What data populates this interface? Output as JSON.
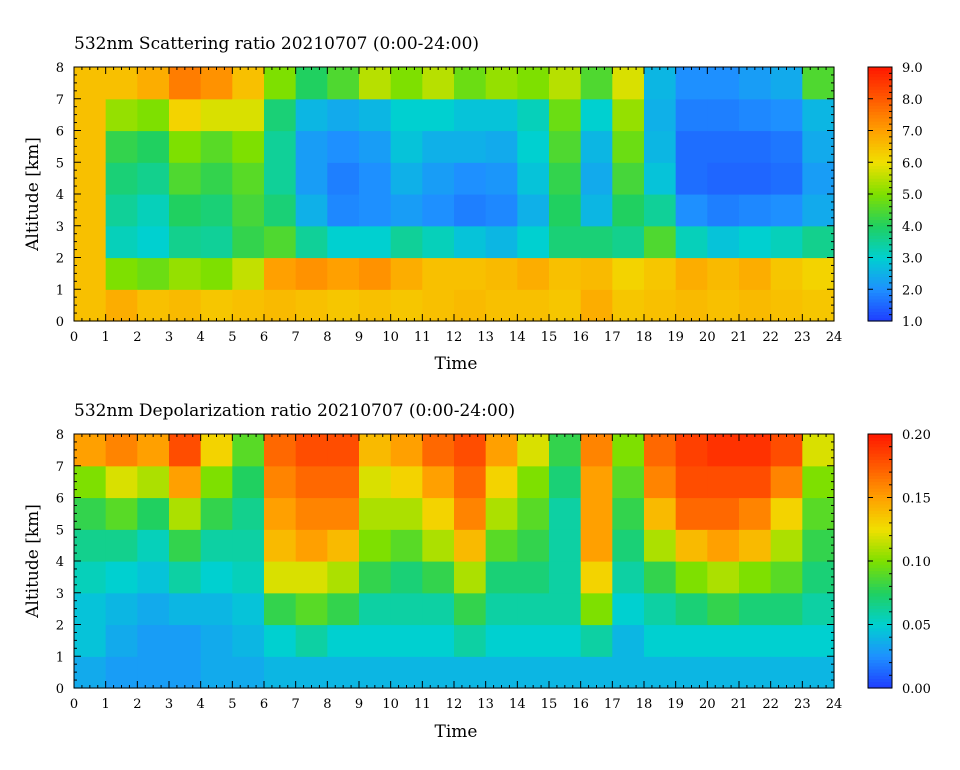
{
  "chart_data": [
    {
      "type": "heatmap",
      "title": "532nm Scattering ratio  20210707 (0:00-24:00)",
      "xlabel": "Time",
      "ylabel": "Altitude [km]",
      "xlim": [
        0,
        24
      ],
      "ylim": [
        0,
        8
      ],
      "xticks": [
        "0",
        "1",
        "2",
        "3",
        "4",
        "5",
        "6",
        "7",
        "8",
        "9",
        "10",
        "11",
        "12",
        "13",
        "14",
        "15",
        "16",
        "17",
        "18",
        "19",
        "20",
        "21",
        "22",
        "23",
        "24"
      ],
      "yticks": [
        "0",
        "1",
        "2",
        "3",
        "4",
        "5",
        "6",
        "7",
        "8"
      ],
      "colorbar": {
        "min": 1.0,
        "max": 9.0,
        "ticks": [
          "1.0",
          "2.0",
          "3.0",
          "4.0",
          "5.0",
          "6.0",
          "7.0",
          "8.0",
          "9.0"
        ],
        "colors": [
          "#1f3cff",
          "#1e90ff",
          "#00d0d0",
          "#20d060",
          "#7ee000",
          "#f0e000",
          "#ffa000",
          "#ff5a00",
          "#ff1800"
        ]
      },
      "x_bins": [
        "0-1",
        "1-2",
        "2-3",
        "3-4",
        "4-5",
        "5-6",
        "6-7",
        "7-8",
        "8-9",
        "9-10",
        "10-11",
        "11-12",
        "12-13",
        "13-14",
        "14-15",
        "15-16",
        "16-17",
        "17-18",
        "18-19",
        "19-20",
        "20-21",
        "21-22",
        "22-23",
        "23-24"
      ],
      "y_bins": [
        "0-1",
        "1-2",
        "2-3",
        "3-4",
        "4-5",
        "5-6",
        "6-7",
        "7-8"
      ],
      "values": [
        [
          6.5,
          6.5,
          6.5,
          6.5,
          6.5,
          6.5,
          6.5,
          6.5
        ],
        [
          6.8,
          5.0,
          3.2,
          3.5,
          3.8,
          4.2,
          5.2,
          6.5
        ],
        [
          6.5,
          4.8,
          3.0,
          3.2,
          3.6,
          4.0,
          5.0,
          6.8
        ],
        [
          6.6,
          5.2,
          3.6,
          4.0,
          4.5,
          5.0,
          6.2,
          7.5
        ],
        [
          6.4,
          5.0,
          3.5,
          3.8,
          4.2,
          4.6,
          5.8,
          7.2
        ],
        [
          6.5,
          5.6,
          4.2,
          4.4,
          4.6,
          5.0,
          5.8,
          6.5
        ],
        [
          6.6,
          7.0,
          4.5,
          3.8,
          3.5,
          3.5,
          3.8,
          5.0
        ],
        [
          6.5,
          7.2,
          3.5,
          2.5,
          2.2,
          2.2,
          2.6,
          4.0
        ],
        [
          6.4,
          7.0,
          3.0,
          1.9,
          1.8,
          2.0,
          2.4,
          4.5
        ],
        [
          6.5,
          7.2,
          3.0,
          2.0,
          2.0,
          2.2,
          2.6,
          5.5
        ],
        [
          6.4,
          6.8,
          3.5,
          2.2,
          2.5,
          2.8,
          3.0,
          5.0
        ],
        [
          6.5,
          6.5,
          3.2,
          2.0,
          2.2,
          2.5,
          3.0,
          5.5
        ],
        [
          6.6,
          6.5,
          2.8,
          1.8,
          2.0,
          2.5,
          2.8,
          4.8
        ],
        [
          6.5,
          6.6,
          2.6,
          1.9,
          2.1,
          2.4,
          2.8,
          5.2
        ],
        [
          6.5,
          6.8,
          3.0,
          2.5,
          2.8,
          3.0,
          3.2,
          5.0
        ],
        [
          6.4,
          6.5,
          3.8,
          4.0,
          4.2,
          4.5,
          4.8,
          5.5
        ],
        [
          6.8,
          6.6,
          3.8,
          2.6,
          2.4,
          2.6,
          3.0,
          4.5
        ],
        [
          6.4,
          6.2,
          3.6,
          4.0,
          4.4,
          4.8,
          5.2,
          5.8
        ],
        [
          6.5,
          6.4,
          4.5,
          3.5,
          2.8,
          2.6,
          2.5,
          2.6
        ],
        [
          6.6,
          6.8,
          3.2,
          2.0,
          1.6,
          1.6,
          1.8,
          2.0
        ],
        [
          6.5,
          6.6,
          2.8,
          1.8,
          1.5,
          1.6,
          1.8,
          2.0
        ],
        [
          6.6,
          6.8,
          3.0,
          1.9,
          1.5,
          1.6,
          1.9,
          2.2
        ],
        [
          6.5,
          6.4,
          3.2,
          2.0,
          1.6,
          1.7,
          2.0,
          2.4
        ],
        [
          6.4,
          6.2,
          3.6,
          2.4,
          2.2,
          2.4,
          2.6,
          4.5
        ]
      ]
    },
    {
      "type": "heatmap",
      "title": "532nm Depolarization ratio  20210707 (0:00-24:00)",
      "xlabel": "Time",
      "ylabel": "Altitude [km]",
      "xlim": [
        0,
        24
      ],
      "ylim": [
        0,
        8
      ],
      "xticks": [
        "0",
        "1",
        "2",
        "3",
        "4",
        "5",
        "6",
        "7",
        "8",
        "9",
        "10",
        "11",
        "12",
        "13",
        "14",
        "15",
        "16",
        "17",
        "18",
        "19",
        "20",
        "21",
        "22",
        "23",
        "24"
      ],
      "yticks": [
        "0",
        "1",
        "2",
        "3",
        "4",
        "5",
        "6",
        "7",
        "8"
      ],
      "colorbar": {
        "min": 0.0,
        "max": 0.2,
        "ticks": [
          "0.00",
          "0.05",
          "0.10",
          "0.15",
          "0.20"
        ],
        "colors": [
          "#1f3cff",
          "#1e90ff",
          "#00d0d0",
          "#20d060",
          "#7ee000",
          "#f0e000",
          "#ffa000",
          "#ff5a00",
          "#ff1800"
        ]
      },
      "x_bins": [
        "0-1",
        "1-2",
        "2-3",
        "3-4",
        "4-5",
        "5-6",
        "6-7",
        "7-8",
        "8-9",
        "9-10",
        "10-11",
        "11-12",
        "12-13",
        "13-14",
        "14-15",
        "15-16",
        "16-17",
        "17-18",
        "18-19",
        "19-20",
        "20-21",
        "21-22",
        "22-23",
        "23-24"
      ],
      "y_bins": [
        "0-1",
        "1-2",
        "2-3",
        "3-4",
        "4-5",
        "5-6",
        "6-7",
        "7-8"
      ],
      "values": [
        [
          0.035,
          0.045,
          0.045,
          0.055,
          0.065,
          0.08,
          0.1,
          0.15
        ],
        [
          0.03,
          0.035,
          0.04,
          0.05,
          0.065,
          0.09,
          0.12,
          0.16
        ],
        [
          0.03,
          0.03,
          0.035,
          0.045,
          0.055,
          0.075,
          0.11,
          0.15
        ],
        [
          0.03,
          0.03,
          0.04,
          0.06,
          0.08,
          0.11,
          0.15,
          0.18
        ],
        [
          0.035,
          0.035,
          0.04,
          0.05,
          0.06,
          0.08,
          0.1,
          0.13
        ],
        [
          0.035,
          0.04,
          0.045,
          0.055,
          0.06,
          0.065,
          0.075,
          0.09
        ],
        [
          0.04,
          0.05,
          0.08,
          0.12,
          0.14,
          0.15,
          0.16,
          0.17
        ],
        [
          0.04,
          0.06,
          0.09,
          0.12,
          0.15,
          0.16,
          0.17,
          0.18
        ],
        [
          0.04,
          0.05,
          0.08,
          0.11,
          0.14,
          0.16,
          0.17,
          0.18
        ],
        [
          0.04,
          0.05,
          0.06,
          0.08,
          0.1,
          0.11,
          0.12,
          0.14
        ],
        [
          0.04,
          0.05,
          0.06,
          0.07,
          0.09,
          0.11,
          0.13,
          0.15
        ],
        [
          0.04,
          0.05,
          0.06,
          0.08,
          0.11,
          0.13,
          0.15,
          0.17
        ],
        [
          0.04,
          0.06,
          0.08,
          0.11,
          0.14,
          0.16,
          0.17,
          0.18
        ],
        [
          0.04,
          0.05,
          0.06,
          0.07,
          0.09,
          0.11,
          0.13,
          0.15
        ],
        [
          0.04,
          0.05,
          0.06,
          0.07,
          0.08,
          0.09,
          0.1,
          0.12
        ],
        [
          0.04,
          0.05,
          0.06,
          0.06,
          0.06,
          0.06,
          0.07,
          0.08
        ],
        [
          0.04,
          0.06,
          0.1,
          0.13,
          0.15,
          0.15,
          0.15,
          0.16
        ],
        [
          0.04,
          0.04,
          0.05,
          0.06,
          0.07,
          0.08,
          0.09,
          0.1
        ],
        [
          0.04,
          0.05,
          0.06,
          0.08,
          0.11,
          0.14,
          0.16,
          0.17
        ],
        [
          0.04,
          0.05,
          0.07,
          0.1,
          0.14,
          0.17,
          0.18,
          0.185
        ],
        [
          0.04,
          0.05,
          0.08,
          0.11,
          0.15,
          0.17,
          0.18,
          0.19
        ],
        [
          0.04,
          0.05,
          0.07,
          0.1,
          0.14,
          0.16,
          0.18,
          0.19
        ],
        [
          0.04,
          0.05,
          0.07,
          0.09,
          0.11,
          0.13,
          0.16,
          0.18
        ],
        [
          0.04,
          0.05,
          0.06,
          0.07,
          0.08,
          0.09,
          0.1,
          0.12
        ]
      ]
    }
  ]
}
